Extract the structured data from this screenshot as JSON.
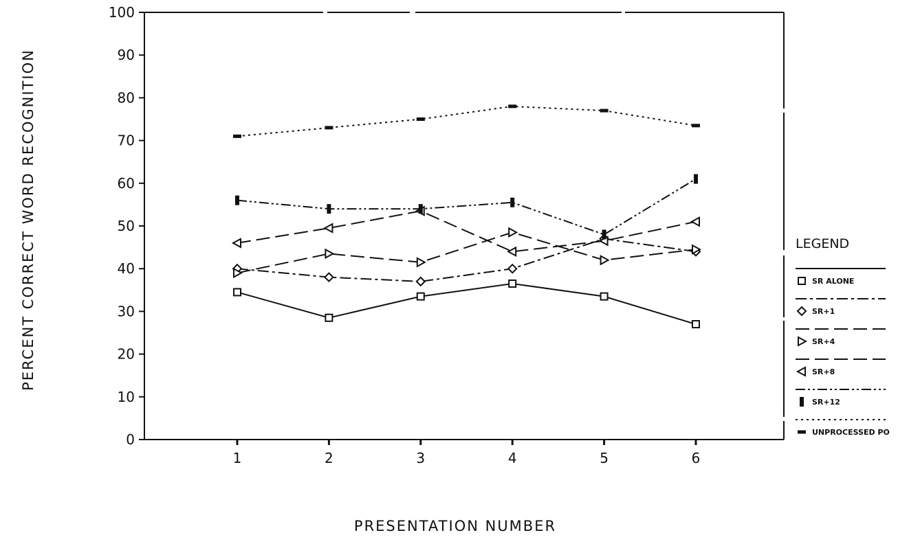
{
  "chart_data": {
    "type": "line",
    "xlabel": "PRESENTATION NUMBER",
    "ylabel": "PERCENT CORRECT WORD RECOGNITION",
    "x": [
      1,
      2,
      3,
      4,
      5,
      6
    ],
    "xticks": [
      "1",
      "2",
      "3",
      "4",
      "5",
      "6"
    ],
    "ylim": [
      0,
      100
    ],
    "yticks": [
      "0",
      "10",
      "20",
      "30",
      "40",
      "50",
      "60",
      "70",
      "80",
      "90",
      "100"
    ],
    "grid": false,
    "legend_title": "LEGEND",
    "legend_position": "right",
    "series": [
      {
        "name": "SR ALONE",
        "marker": "square-icon",
        "dash": "solid",
        "values": [
          34.5,
          28.5,
          33.5,
          36.5,
          33.5,
          27
        ]
      },
      {
        "name": "SR+1",
        "marker": "diamond-icon",
        "dash": "dash-dot",
        "values": [
          40,
          38,
          37,
          40,
          47,
          44
        ]
      },
      {
        "name": "SR+4",
        "marker": "triangle-right-icon",
        "dash": "long-dash",
        "values": [
          39,
          43.5,
          41.5,
          48.5,
          42,
          44.5
        ]
      },
      {
        "name": "SR+8",
        "marker": "triangle-left-icon",
        "dash": "long-dash",
        "values": [
          46,
          49.5,
          53.5,
          44,
          46.5,
          51
        ]
      },
      {
        "name": "SR+12",
        "marker": "bar-icon",
        "dash": "dash-dot-dot",
        "values": [
          56,
          54,
          54,
          55.5,
          48,
          61
        ]
      },
      {
        "name": "UNPROCESSED PO",
        "marker": "dash-icon",
        "dash": "dotted",
        "values": [
          71,
          73,
          75,
          78,
          77,
          73.5
        ]
      }
    ]
  }
}
